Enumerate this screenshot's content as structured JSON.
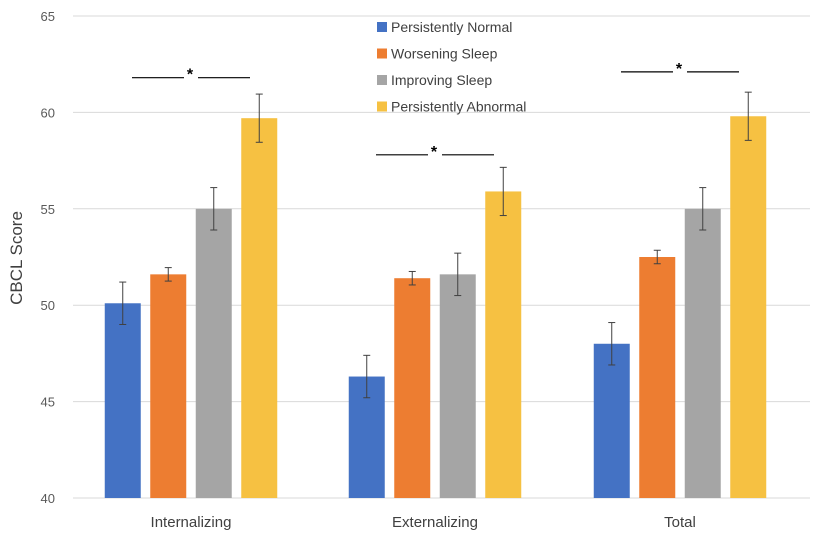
{
  "chart_data": {
    "type": "bar",
    "title": "",
    "xlabel": "",
    "ylabel": "CBCL Score",
    "ylim": [
      40,
      65
    ],
    "yticks": [
      40,
      45,
      50,
      55,
      60,
      65
    ],
    "grid": true,
    "legend_position": "top-center",
    "categories": [
      "Internalizing",
      "Externalizing",
      "Total"
    ],
    "series": [
      {
        "name": "Persistently Normal",
        "color": "#4472C4",
        "values": [
          50.1,
          46.3,
          48.0
        ],
        "error": [
          1.1,
          1.1,
          1.1
        ]
      },
      {
        "name": "Worsening Sleep",
        "color": "#ED7D31",
        "values": [
          51.6,
          51.4,
          52.5
        ],
        "error": [
          0.35,
          0.35,
          0.35
        ]
      },
      {
        "name": "Improving Sleep",
        "color": "#A5A5A5",
        "values": [
          55.0,
          51.6,
          55.0
        ],
        "error": [
          1.1,
          1.1,
          1.1
        ]
      },
      {
        "name": "Persistently Abnormal",
        "color": "#F6C142",
        "values": [
          59.7,
          55.9,
          59.8
        ],
        "error": [
          1.25,
          1.25,
          1.25
        ]
      }
    ],
    "annotations": [
      {
        "category": "Internalizing",
        "label": "*",
        "value": 61.8
      },
      {
        "category": "Externalizing",
        "label": "*",
        "value": 57.8
      },
      {
        "category": "Total",
        "label": "*",
        "value": 62.1
      }
    ]
  }
}
